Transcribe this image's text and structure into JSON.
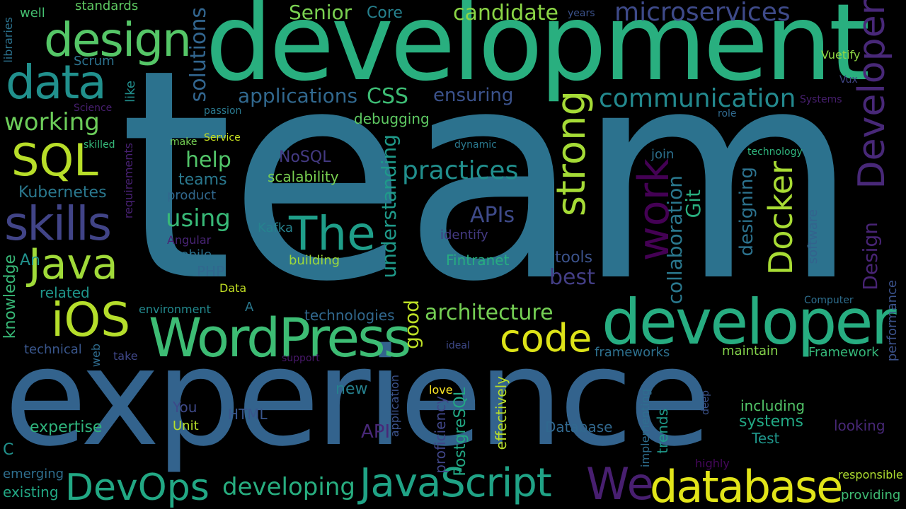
{
  "words": [
    {
      "text": "team",
      "color": "#2c728e"
    },
    {
      "text": "experience",
      "color": "#33638d"
    },
    {
      "text": "development",
      "color": "#29af7f"
    },
    {
      "text": "developer",
      "color": "#27ad81"
    },
    {
      "text": "WordPress",
      "color": "#3dbc74"
    },
    {
      "text": "design",
      "color": "#55c667"
    },
    {
      "text": "data",
      "color": "#21908d"
    },
    {
      "text": "SQL",
      "color": "#b8de29"
    },
    {
      "text": "skills",
      "color": "#414487"
    },
    {
      "text": "Java",
      "color": "#a0da39"
    },
    {
      "text": "iOS",
      "color": "#b5de2b"
    },
    {
      "text": "The",
      "color": "#1f9e89"
    },
    {
      "text": "database",
      "color": "#e1e419"
    },
    {
      "text": "JavaScript",
      "color": "#20a386"
    },
    {
      "text": "DevOps",
      "color": "#22a884"
    },
    {
      "text": "We",
      "color": "#481f70"
    },
    {
      "text": "code",
      "color": "#dde318"
    },
    {
      "text": "architecture",
      "color": "#75d054"
    },
    {
      "text": "practices",
      "color": "#218f8d"
    },
    {
      "text": "communication",
      "color": "#23898e"
    },
    {
      "text": "microservices",
      "color": "#3e4a89"
    },
    {
      "text": "candidate",
      "color": "#8bd646"
    },
    {
      "text": "Senior",
      "color": "#7ad151"
    },
    {
      "text": "Core",
      "color": "#26818e"
    },
    {
      "text": "working",
      "color": "#6ccd5a"
    },
    {
      "text": "applications",
      "color": "#31688e"
    },
    {
      "text": "ensuring",
      "color": "#3b528b"
    },
    {
      "text": "CSS",
      "color": "#3dbc74"
    },
    {
      "text": "debugging",
      "color": "#5ec962"
    },
    {
      "text": "help",
      "color": "#52c569"
    },
    {
      "text": "using",
      "color": "#38b977"
    },
    {
      "text": "teams",
      "color": "#2a788e"
    },
    {
      "text": "product",
      "color": "#31688e"
    },
    {
      "text": "Kubernetes",
      "color": "#2a788e"
    },
    {
      "text": "scalability",
      "color": "#7ad151"
    },
    {
      "text": "NoSQL",
      "color": "#443a83"
    },
    {
      "text": "APIs",
      "color": "#3e4a89"
    },
    {
      "text": "identify",
      "color": "#443a83"
    },
    {
      "text": "Kafka",
      "color": "#26828e"
    },
    {
      "text": "Angular",
      "color": "#482475"
    },
    {
      "text": "mobile",
      "color": "#2c728e"
    },
    {
      "text": "PHP",
      "color": "#31688e"
    },
    {
      "text": "building",
      "color": "#9fda3a"
    },
    {
      "text": "Fintranet",
      "color": "#27ad81"
    },
    {
      "text": "tools",
      "color": "#3b528b"
    },
    {
      "text": "best",
      "color": "#433e85"
    },
    {
      "text": "An",
      "color": "#21918c"
    },
    {
      "text": "related",
      "color": "#1f968b"
    },
    {
      "text": "Data",
      "color": "#c2df23"
    },
    {
      "text": "A",
      "color": "#2a788e"
    },
    {
      "text": "environment",
      "color": "#23898e"
    },
    {
      "text": "technologies",
      "color": "#31688e"
    },
    {
      "text": "technical",
      "color": "#39568c"
    },
    {
      "text": "take",
      "color": "#3f4788"
    },
    {
      "text": "support",
      "color": "#48186a"
    },
    {
      "text": "ideal",
      "color": "#3e4989"
    },
    {
      "text": "frameworks",
      "color": "#2d708e"
    },
    {
      "text": "maintain",
      "color": "#84d44b"
    },
    {
      "text": "Framework",
      "color": "#35b779"
    },
    {
      "text": "Computer",
      "color": "#2e6e8e"
    },
    {
      "text": "new",
      "color": "#26818e"
    },
    {
      "text": "love",
      "color": "#fde725"
    },
    {
      "text": "You",
      "color": "#3e4989"
    },
    {
      "text": "Unit",
      "color": "#b5de2b"
    },
    {
      "text": "HTML",
      "color": "#39568c"
    },
    {
      "text": "expertise",
      "color": "#2fb47c"
    },
    {
      "text": "API",
      "color": "#482878"
    },
    {
      "text": "Database",
      "color": "#31688e"
    },
    {
      "text": "including",
      "color": "#52c569"
    },
    {
      "text": "systems",
      "color": "#22a884"
    },
    {
      "text": "looking",
      "color": "#482878"
    },
    {
      "text": "Test",
      "color": "#1f968b"
    },
    {
      "text": "C",
      "color": "#21918c"
    },
    {
      "text": "emerging",
      "color": "#2e6e8e"
    },
    {
      "text": "existing",
      "color": "#22a884"
    },
    {
      "text": "developing",
      "color": "#28ae80"
    },
    {
      "text": "highly",
      "color": "#46085c"
    },
    {
      "text": "responsible",
      "color": "#addc30"
    },
    {
      "text": "providing",
      "color": "#3fbc73"
    },
    {
      "text": "well",
      "color": "#44bf70"
    },
    {
      "text": "standards",
      "color": "#5ec962"
    },
    {
      "text": "Scrum",
      "color": "#2c728e"
    },
    {
      "text": "Science",
      "color": "#481f70"
    },
    {
      "text": "skilled",
      "color": "#35b779"
    },
    {
      "text": "make",
      "color": "#75d054"
    },
    {
      "text": "Service",
      "color": "#c8e020"
    },
    {
      "text": "passion",
      "color": "#2a788e"
    },
    {
      "text": "dynamic",
      "color": "#2a788e"
    },
    {
      "text": "join",
      "color": "#2d708e"
    },
    {
      "text": "technology",
      "color": "#2fb47c"
    },
    {
      "text": "role",
      "color": "#306a8e"
    },
    {
      "text": "years",
      "color": "#3b528b"
    },
    {
      "text": "Vuetify",
      "color": "#8fd744"
    },
    {
      "text": "Vux",
      "color": "#404688"
    },
    {
      "text": "Systems",
      "color": "#481f70"
    },
    {
      "text": "Developer",
      "color": "#482878"
    },
    {
      "text": "Design",
      "color": "#482475"
    },
    {
      "text": "performance",
      "color": "#3b528b"
    },
    {
      "text": "software",
      "color": "#33638d"
    },
    {
      "text": "designing",
      "color": "#2c728e"
    },
    {
      "text": "Git",
      "color": "#29af7f"
    },
    {
      "text": "collaboration",
      "color": "#2a788e"
    },
    {
      "text": "Docker",
      "color": "#a8db34"
    },
    {
      "text": "work",
      "color": "#440154"
    },
    {
      "text": "strong",
      "color": "#a5db36"
    },
    {
      "text": "understanding",
      "color": "#1f9a8a"
    },
    {
      "text": "good",
      "color": "#bddf26"
    },
    {
      "text": "solutions",
      "color": "#32658e"
    },
    {
      "text": "libraries",
      "color": "#2c728e"
    },
    {
      "text": "knowledge",
      "color": "#38b977"
    },
    {
      "text": "web",
      "color": "#2f6c8e"
    },
    {
      "text": "like",
      "color": "#218f8d"
    },
    {
      "text": "requirements",
      "color": "#482173"
    },
    {
      "text": "application",
      "color": "#3b528b"
    },
    {
      "text": "proficiency",
      "color": "#404688"
    },
    {
      "text": "PostgreSQL",
      "color": "#22a884"
    },
    {
      "text": "effectively",
      "color": "#b8de29"
    },
    {
      "text": "implementing",
      "color": "#2e6e8e"
    },
    {
      "text": "trends",
      "color": "#1f9a8a"
    },
    {
      "text": "deep",
      "color": "#3b528b"
    }
  ]
}
